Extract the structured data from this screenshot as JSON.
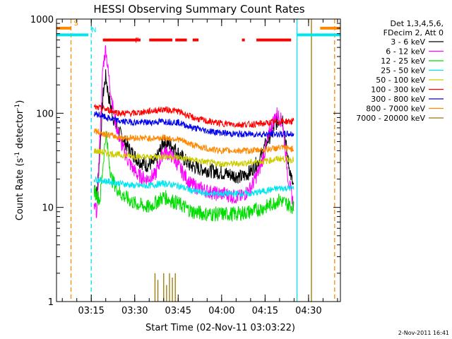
{
  "chart_data": {
    "type": "line",
    "title": "HESSI Observing Summary Count Rates",
    "xlabel": "Start Time (02-Nov-11 03:03:22)",
    "ylabel_main": "Count Rate (s",
    "ylabel_sup1": "-1",
    "ylabel_mid": " detector",
    "ylabel_sup2": "-1",
    "ylabel_end": ")",
    "yscale": "log",
    "ylim": [
      1,
      1000
    ],
    "xlim": [
      "03:03",
      "04:41"
    ],
    "x_ticks": [
      "03:15",
      "03:30",
      "03:45",
      "04:00",
      "04:15",
      "04:30"
    ],
    "y_ticks": [
      "1",
      "10",
      "100",
      "1000"
    ],
    "legend_header": [
      "Det 1,3,4,5,6,",
      "FDecim 2, Att 0"
    ],
    "series": [
      {
        "name": "3 - 6 keV",
        "color": "#000000",
        "x": [
          "03:16",
          "03:17",
          "03:18",
          "03:19",
          "03:20",
          "03:21",
          "03:23",
          "03:25",
          "03:28",
          "03:31",
          "03:34",
          "03:37",
          "03:40",
          "03:43",
          "03:46",
          "03:49",
          "03:52",
          "03:55",
          "03:58",
          "04:01",
          "04:04",
          "04:07",
          "04:10",
          "04:13",
          "04:15",
          "04:17",
          "04:19",
          "04:21",
          "04:23",
          "04:25"
        ],
        "y": [
          17,
          14,
          40,
          150,
          250,
          150,
          80,
          60,
          42,
          32,
          28,
          30,
          50,
          45,
          35,
          28,
          26,
          25,
          24,
          23,
          22,
          21,
          24,
          32,
          45,
          60,
          80,
          90,
          30,
          15
        ]
      },
      {
        "name": "6 - 12 keV",
        "color": "#ff00ff",
        "x": [
          "03:16",
          "03:17",
          "03:18",
          "03:19",
          "03:20",
          "03:21",
          "03:23",
          "03:25",
          "03:28",
          "03:31",
          "03:34",
          "03:37",
          "03:40",
          "03:43",
          "03:46",
          "03:49",
          "03:52",
          "03:55",
          "03:58",
          "04:01",
          "04:04",
          "04:07",
          "04:10",
          "04:13",
          "04:15",
          "04:17",
          "04:19",
          "04:21",
          "04:23",
          "04:25"
        ],
        "y": [
          10,
          9,
          60,
          300,
          500,
          250,
          90,
          50,
          30,
          22,
          20,
          22,
          40,
          35,
          25,
          18,
          16,
          15,
          14,
          14,
          13,
          13,
          16,
          25,
          40,
          70,
          100,
          80,
          20,
          10
        ]
      },
      {
        "name": "12 - 25 keV",
        "color": "#00dd00",
        "x": [
          "03:16",
          "03:18",
          "03:20",
          "03:22",
          "03:25",
          "03:30",
          "03:35",
          "03:40",
          "03:45",
          "03:50",
          "03:55",
          "04:00",
          "04:05",
          "04:10",
          "04:15",
          "04:20",
          "04:25"
        ],
        "y": [
          15,
          12,
          60,
          20,
          14,
          11,
          10,
          13,
          11,
          9,
          8.5,
          8.5,
          8.5,
          9,
          10,
          12,
          10
        ]
      },
      {
        "name": "25 - 50 keV",
        "color": "#00e5ee",
        "x": [
          "03:16",
          "03:20",
          "03:25",
          "03:30",
          "03:35",
          "03:40",
          "03:45",
          "03:50",
          "03:55",
          "04:00",
          "04:05",
          "04:10",
          "04:15",
          "04:20",
          "04:25"
        ],
        "y": [
          20,
          19,
          18,
          17,
          17,
          18,
          17,
          15,
          14,
          14,
          14,
          14,
          15,
          16,
          16
        ]
      },
      {
        "name": "50 - 100 keV",
        "color": "#cccc00",
        "x": [
          "03:16",
          "03:20",
          "03:25",
          "03:30",
          "03:35",
          "03:40",
          "03:45",
          "03:50",
          "03:55",
          "04:00",
          "04:05",
          "04:10",
          "04:15",
          "04:20",
          "04:25"
        ],
        "y": [
          40,
          38,
          36,
          35,
          34,
          35,
          34,
          32,
          30,
          29,
          29,
          30,
          31,
          33,
          32
        ]
      },
      {
        "name": "100 - 300 keV",
        "color": "#ff0000",
        "x": [
          "03:16",
          "03:20",
          "03:25",
          "03:30",
          "03:35",
          "03:40",
          "03:45",
          "03:50",
          "03:55",
          "04:00",
          "04:05",
          "04:10",
          "04:15",
          "04:20",
          "04:25"
        ],
        "y": [
          115,
          110,
          100,
          100,
          105,
          110,
          105,
          90,
          82,
          78,
          76,
          76,
          78,
          82,
          82
        ]
      },
      {
        "name": "300 - 800 keV",
        "color": "#0000ee",
        "x": [
          "03:16",
          "03:20",
          "03:25",
          "03:30",
          "03:35",
          "03:40",
          "03:45",
          "03:50",
          "03:55",
          "04:00",
          "04:05",
          "04:10",
          "04:15",
          "04:20",
          "04:25"
        ],
        "y": [
          100,
          90,
          82,
          80,
          80,
          82,
          80,
          70,
          65,
          62,
          60,
          60,
          60,
          60,
          60
        ]
      },
      {
        "name": "800 - 7000 keV",
        "color": "#ff8800",
        "x": [
          "03:16",
          "03:20",
          "03:25",
          "03:30",
          "03:35",
          "03:40",
          "03:45",
          "03:50",
          "03:55",
          "04:00",
          "04:05",
          "04:10",
          "04:15",
          "04:20",
          "04:25"
        ],
        "y": [
          65,
          60,
          55,
          55,
          54,
          55,
          53,
          46,
          42,
          40,
          40,
          40,
          41,
          43,
          42
        ]
      },
      {
        "name": "7000 - 20000 keV",
        "color": "#997700",
        "x": [
          "03:37",
          "03:38",
          "03:40",
          "03:41",
          "03:42",
          "03:43",
          "03:44"
        ],
        "y": [
          2,
          1.7,
          2,
          1.5,
          2,
          1.8,
          2
        ]
      }
    ],
    "markers": [
      {
        "label": "S",
        "color": "#ff8800",
        "segment": [
          "03:03",
          "03:08"
        ],
        "level": 800
      },
      {
        "label": "N",
        "color": "#00e5ee",
        "segment": [
          "03:03",
          "03:14"
        ],
        "level": 680
      },
      {
        "label": "F",
        "color": "#ff0000",
        "segments": [
          [
            "03:19",
            "03:32"
          ],
          [
            "03:35",
            "03:43"
          ],
          [
            "03:44",
            "03:48"
          ],
          [
            "03:50",
            "03:52"
          ],
          [
            "04:07",
            "04:08"
          ],
          [
            "04:12",
            "04:24"
          ]
        ],
        "level": 600
      }
    ],
    "right_markers": [
      {
        "color": "#00e5ee",
        "segment": [
          "04:26",
          "04:41"
        ],
        "level": 680
      },
      {
        "color": "#ff8800",
        "segment": [
          "04:34",
          "04:41"
        ],
        "level": 800
      }
    ],
    "vlines": [
      {
        "x": "03:08",
        "color": "#ff8800",
        "style": "dashed"
      },
      {
        "x": "03:15",
        "color": "#00e5ee",
        "style": "dashed"
      },
      {
        "x": "04:26",
        "color": "#00e5ee",
        "style": "solid"
      },
      {
        "x": "04:31",
        "color": "#997700",
        "style": "solid"
      },
      {
        "x": "04:39",
        "color": "#ff8800",
        "style": "dashed"
      }
    ],
    "grid": false,
    "legend_position": "right"
  },
  "footer": {
    "timestamp": "2-Nov-2011 16:41"
  }
}
